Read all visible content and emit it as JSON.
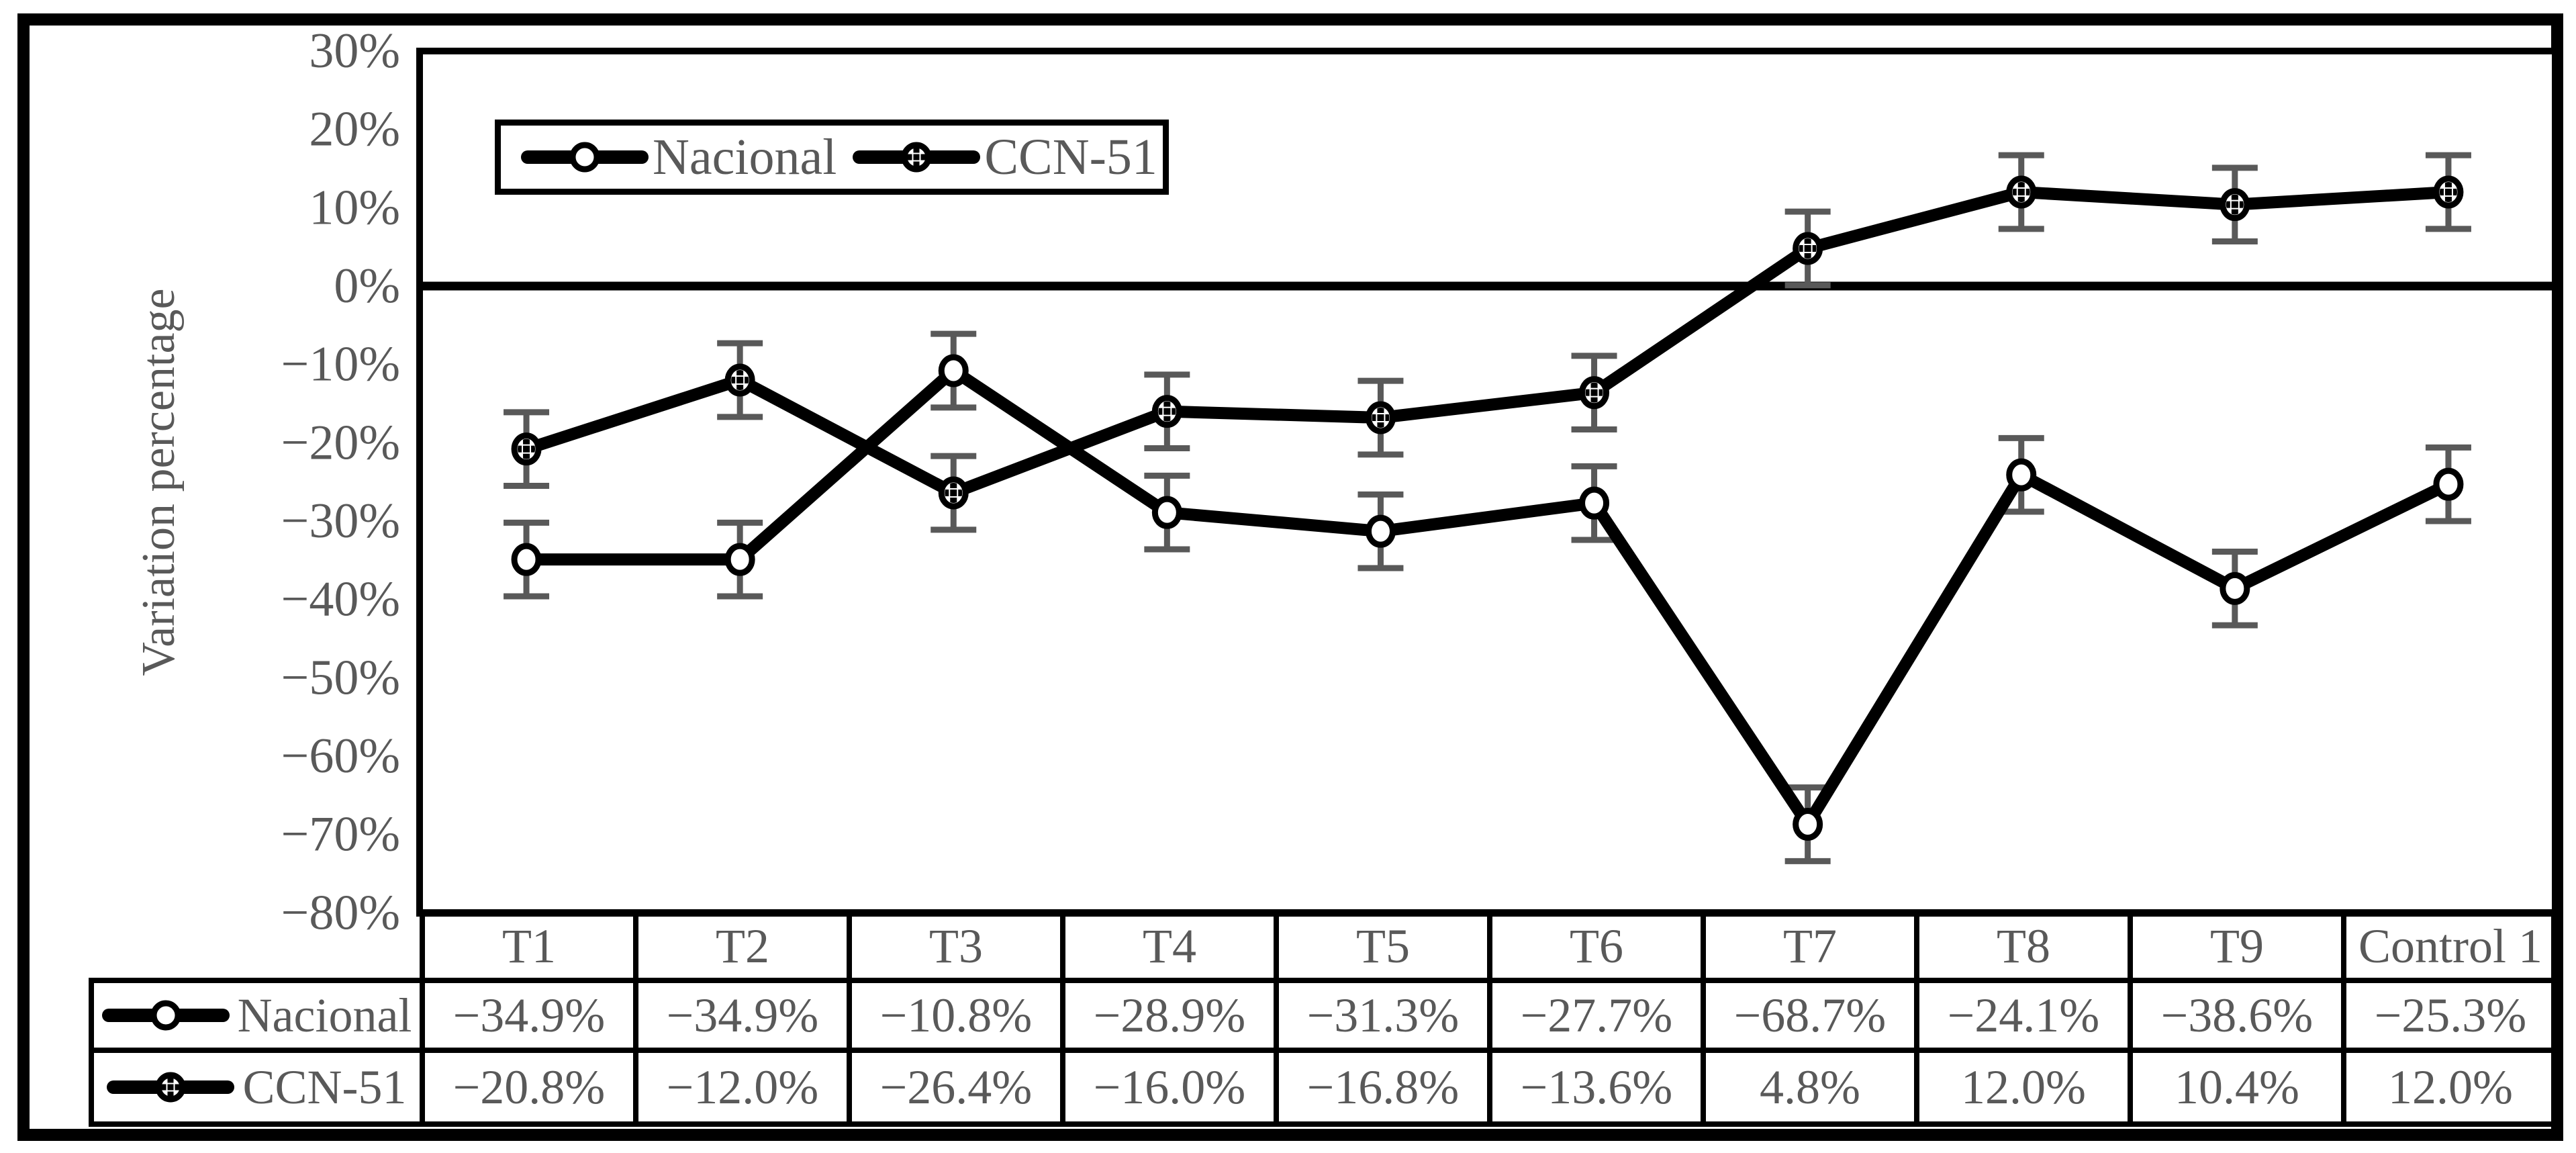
{
  "figure": {
    "background": "#ffffff",
    "border_color": "#000000"
  },
  "axis": {
    "ylabel": "Variation percentage",
    "text_color": "#595959"
  },
  "legend": {
    "items": [
      {
        "label": "Nacional",
        "marker": "open-circle-marker"
      },
      {
        "label": "CCN-51",
        "marker": "checker-circle-marker"
      }
    ]
  },
  "chart_data": {
    "type": "line",
    "title": "",
    "xlabel": "",
    "ylabel": "Variation percentage",
    "categories": [
      "T1",
      "T2",
      "T3",
      "T4",
      "T5",
      "T6",
      "T7",
      "T8",
      "T9",
      "Control 1"
    ],
    "series": [
      {
        "name": "Nacional",
        "marker": "open-circle",
        "values": [
          -34.9,
          -34.9,
          -10.8,
          -28.9,
          -31.3,
          -27.7,
          -68.7,
          -24.1,
          -38.6,
          -25.3
        ],
        "error_bar_pct": 4.7
      },
      {
        "name": "CCN-51",
        "marker": "checker-circle",
        "values": [
          -20.8,
          -12.0,
          -26.4,
          -16.0,
          -16.8,
          -13.6,
          4.8,
          12.0,
          10.4,
          12.0
        ],
        "error_bar_pct": 4.7
      }
    ],
    "ylim": [
      -80,
      30
    ],
    "ytick_labels": [
      "30%",
      "20%",
      "10%",
      "0%",
      "−10%",
      "−20%",
      "−30%",
      "−40%",
      "−50%",
      "−60%",
      "−70%",
      "−80%"
    ],
    "ytick_values": [
      30,
      20,
      10,
      0,
      -10,
      -20,
      -30,
      -40,
      -50,
      -60,
      -70,
      -80
    ],
    "grid": false,
    "zero_line": true,
    "legend_position": "top-left-inside",
    "line_color": "#000000",
    "marker_fill": "#ffffff",
    "error_bar_color": "#595959"
  },
  "table": {
    "header": [
      "T1",
      "T2",
      "T3",
      "T4",
      "T5",
      "T6",
      "T7",
      "T8",
      "T9",
      "Control 1"
    ],
    "rows": [
      {
        "label": "Nacional",
        "marker": "open-circle-marker",
        "values": [
          "−34.9%",
          "−34.9%",
          "−10.8%",
          "−28.9%",
          "−31.3%",
          "−27.7%",
          "−68.7%",
          "−24.1%",
          "−38.6%",
          "−25.3%"
        ]
      },
      {
        "label": "CCN-51",
        "marker": "checker-circle-marker",
        "values": [
          "−20.8%",
          "−12.0%",
          "−26.4%",
          "−16.0%",
          "−16.8%",
          "−13.6%",
          "4.8%",
          "12.0%",
          "10.4%",
          "12.0%"
        ]
      }
    ]
  },
  "colors": {
    "text": "#595959",
    "line": "#000000",
    "error_bar": "#595959",
    "border": "#000000",
    "background": "#ffffff"
  }
}
